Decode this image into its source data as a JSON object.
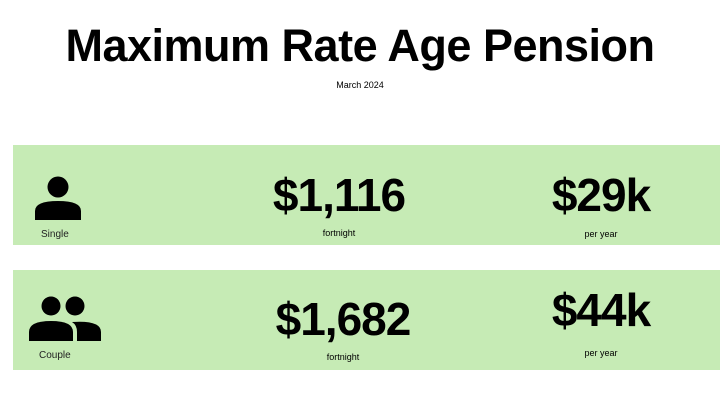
{
  "title": "Maximum Rate Age Pension",
  "subtitle": "March 2024",
  "colors": {
    "band": "#c6ebb5",
    "text": "#000000"
  },
  "rows": [
    {
      "icon": "person-icon",
      "label": "Single",
      "fortnight_amount": "$1,116",
      "fortnight_label": "fortnight",
      "year_amount": "$29k",
      "year_label": "per year"
    },
    {
      "icon": "two-people-icon",
      "label": "Couple",
      "fortnight_amount": "$1,682",
      "fortnight_label": "fortnight",
      "year_amount": "$44k",
      "year_label": "per year"
    }
  ]
}
